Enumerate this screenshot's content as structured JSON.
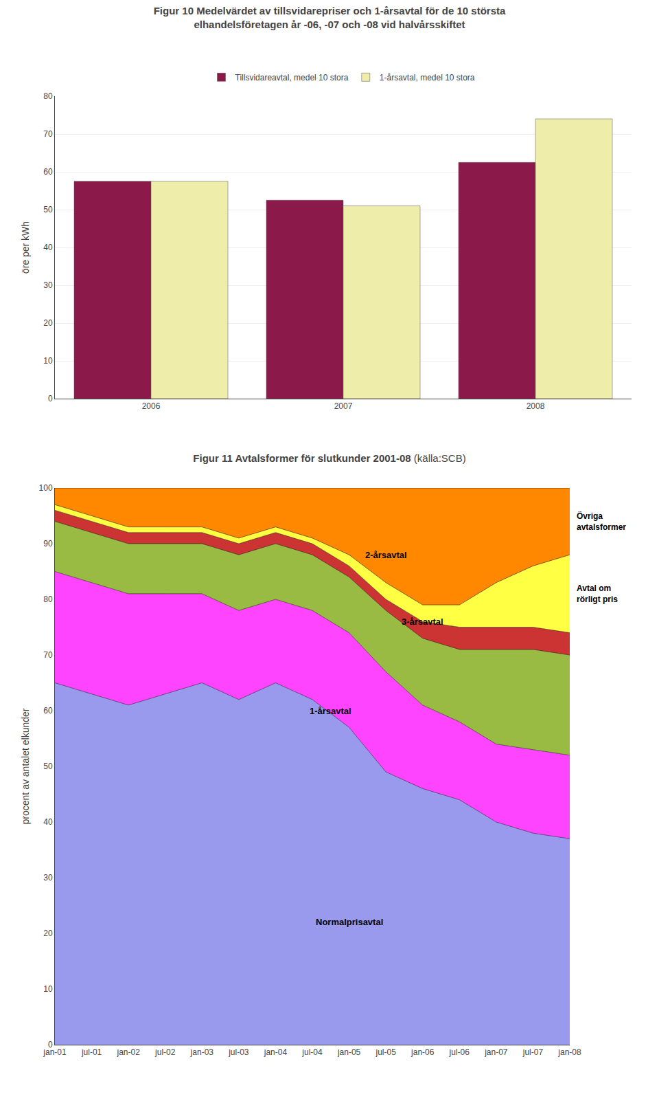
{
  "chart_data": [
    {
      "type": "bar",
      "title": "Figur 10 Medelvärdet av tillsvidarepriser och 1-årsavtal för de 10 största\nelhandelsföretagen år -06, -07 och -08 vid halvårsskiftet",
      "categories": [
        "2006",
        "2007",
        "2008"
      ],
      "series": [
        {
          "name": "Tillsvidareavtal, medel 10 stora",
          "color": "#8B1A4A",
          "values": [
            57.5,
            52.5,
            62.5
          ]
        },
        {
          "name": "1-årsavtal, medel 10 stora",
          "color": "#EEEEAA",
          "values": [
            57.5,
            51.0,
            74.0
          ]
        }
      ],
      "ylabel": "öre per kWh",
      "ylim": [
        0,
        80
      ],
      "yticks": [
        0,
        10,
        20,
        30,
        40,
        50,
        60,
        70,
        80
      ],
      "grid": true,
      "legend": "top"
    },
    {
      "type": "area",
      "stacked": true,
      "title": "Figur 11 Avtalsformer för slutkunder 2001-08",
      "subtitle": "(källa:SCB)",
      "categories": [
        "jan-01",
        "jul-01",
        "jan-02",
        "jul-02",
        "jan-03",
        "jul-03",
        "jan-04",
        "jul-04",
        "jan-05",
        "jul-05",
        "jan-06",
        "jul-06",
        "jan-07",
        "jul-07",
        "jan-08"
      ],
      "series": [
        {
          "name": "Normalprisavtal",
          "color": "#9999EE",
          "values": [
            65,
            63,
            61,
            63,
            65,
            62,
            65,
            62,
            57,
            49,
            46,
            44,
            40,
            38,
            37
          ]
        },
        {
          "name": "1-årsavtal",
          "color": "#FF44FF",
          "values": [
            20,
            20,
            20,
            18,
            16,
            16,
            15,
            16,
            17,
            18,
            15,
            14,
            14,
            15,
            15
          ]
        },
        {
          "name": "3-årsavtal",
          "color": "#99BB44",
          "values": [
            9,
            9,
            9,
            9,
            9,
            10,
            10,
            10,
            10,
            11,
            12,
            13,
            17,
            18,
            18
          ]
        },
        {
          "name": "2-årsavtal",
          "color": "#CC3333",
          "values": [
            2,
            2,
            2,
            2,
            2,
            2,
            2,
            2,
            2,
            2,
            3,
            4,
            4,
            4,
            4
          ]
        },
        {
          "name": "Avtal om\nrörligt pris",
          "color": "#FFFF44",
          "values": [
            1,
            1,
            1,
            1,
            1,
            1,
            1,
            1,
            2,
            3,
            3,
            4,
            8,
            11,
            14
          ]
        },
        {
          "name": "Övriga\navtalsformer",
          "color": "#FF8800",
          "values": [
            3,
            5,
            7,
            7,
            7,
            9,
            7,
            9,
            12,
            17,
            21,
            21,
            17,
            14,
            12
          ]
        }
      ],
      "ylabel": "procent av antalet elkunder",
      "ylim": [
        0,
        100
      ],
      "yticks": [
        0,
        10,
        20,
        30,
        40,
        50,
        60,
        70,
        80,
        90,
        100
      ],
      "grid": true,
      "annotations": [
        {
          "text": "Normalprisavtal",
          "x": 8.0,
          "y": 22
        },
        {
          "text": "1-årsavtal",
          "x": 7.5,
          "y": 60
        },
        {
          "text": "3-årsavtal",
          "x": 10.0,
          "y": 76
        },
        {
          "text": "2-årsavtal",
          "x": 9.0,
          "y": 88
        }
      ]
    }
  ]
}
